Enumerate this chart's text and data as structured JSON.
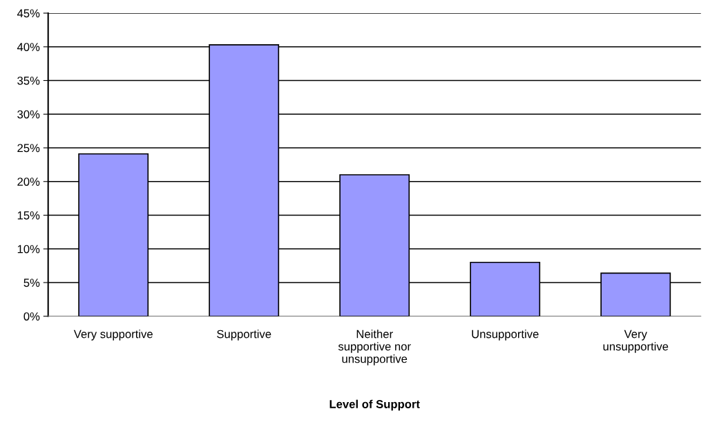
{
  "chart_data": {
    "type": "bar",
    "xlabel": "Level of Support",
    "categories": [
      "Very supportive",
      "Supportive",
      "Neither\nsupportive nor\nunsupportive",
      "Unsupportive",
      "Very\nunsupportive"
    ],
    "values": [
      24.1,
      40.3,
      21.0,
      8.0,
      6.4
    ],
    "color": "#9999ff",
    "ylim": [
      0,
      45
    ],
    "yticks": [
      {
        "value": 0,
        "label": "0%"
      },
      {
        "value": 5,
        "label": "5%"
      },
      {
        "value": 10,
        "label": "10%"
      },
      {
        "value": 15,
        "label": "15%"
      },
      {
        "value": 20,
        "label": "20%"
      },
      {
        "value": 25,
        "label": "25%"
      },
      {
        "value": 30,
        "label": "30%"
      },
      {
        "value": 35,
        "label": "35%"
      },
      {
        "value": 40,
        "label": "40%"
      },
      {
        "value": 45,
        "label": "45%"
      }
    ],
    "grid": "y",
    "legend": false
  }
}
